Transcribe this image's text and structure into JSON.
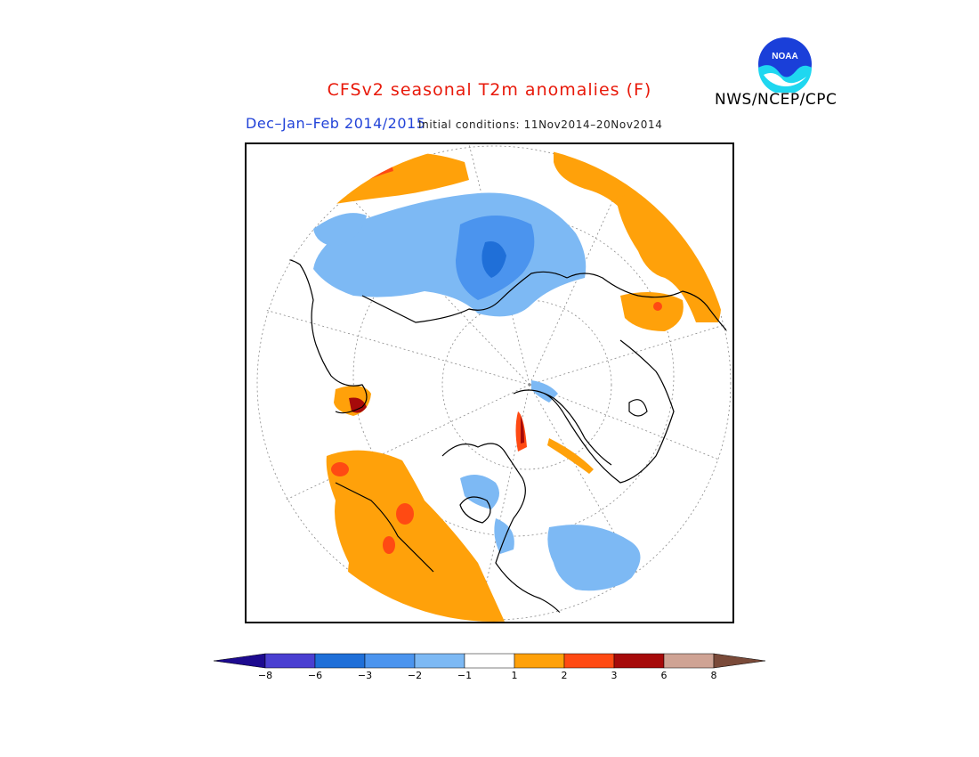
{
  "header": {
    "title": "CFSv2 seasonal T2m anomalies (F)",
    "agency": "NWS/NCEP/CPC",
    "period": "Dec–Jan–Feb 2014/2015",
    "initial_conditions": "Initial conditions: 11Nov2014–20Nov2014",
    "logo_text": "NOAA"
  },
  "map": {
    "projection": "north-polar-stereographic",
    "variable": "T2m anomaly"
  },
  "legend": {
    "units": "F",
    "tick_labels": [
      "−8",
      "−6",
      "−3",
      "−2",
      "−1",
      "1",
      "2",
      "3",
      "6",
      "8"
    ],
    "colors": [
      "#1d0a8f",
      "#4a3fd1",
      "#1f6fd8",
      "#4b94ee",
      "#7db9f4",
      "#ffffff",
      "#ffa10a",
      "#ff4a13",
      "#a60a0a",
      "#cfa394",
      "#7a4a39"
    ]
  }
}
